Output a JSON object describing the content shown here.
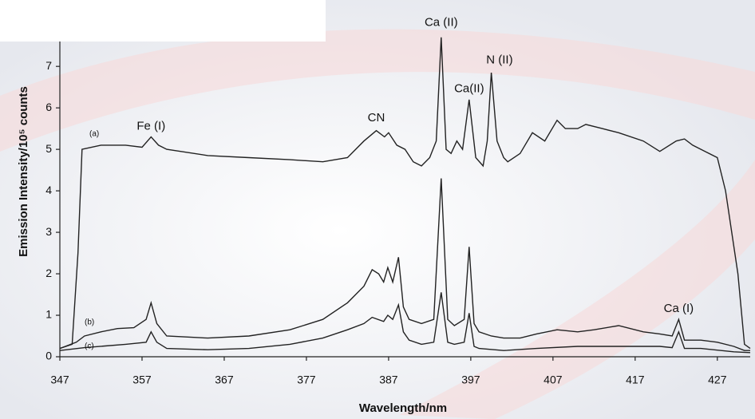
{
  "chart_data": {
    "type": "line",
    "xlabel": "Wavelength/nm",
    "ylabel": "Emission Intensity/10⁵ counts",
    "xlim": [
      347,
      431
    ],
    "ylim": [
      0,
      7.6
    ],
    "xticks": [
      347,
      357,
      367,
      377,
      387,
      397,
      407,
      417,
      427
    ],
    "yticks": [
      0,
      1,
      2,
      3,
      4,
      5,
      6,
      7
    ],
    "annotations": [
      {
        "text": "Fe (I)",
        "x": 358.1,
        "y": 5.55
      },
      {
        "text": "CN",
        "x": 385.5,
        "y": 5.75
      },
      {
        "text": "Ca (II)",
        "x": 393.4,
        "y": 8.05
      },
      {
        "text": "Ca(II)",
        "x": 396.8,
        "y": 6.45
      },
      {
        "text": "N (II)",
        "x": 400.5,
        "y": 7.15
      },
      {
        "text": "Ca (I)",
        "x": 422.3,
        "y": 1.15
      }
    ],
    "series": [
      {
        "name": "(a)",
        "color": "#222",
        "x": [
          347,
          348.5,
          349.2,
          349.7,
          352,
          355,
          357,
          358.1,
          359,
          360,
          365,
          370,
          375,
          379,
          382,
          384,
          385.5,
          386.5,
          387,
          388,
          389,
          390,
          391,
          392,
          392.8,
          393.4,
          394,
          394.6,
          395.3,
          396,
          396.8,
          397.6,
          398.5,
          399,
          399.5,
          400.2,
          401,
          401.5,
          403,
          404.5,
          406,
          407.5,
          408.5,
          410,
          411,
          413,
          415,
          418,
          420,
          422,
          423,
          424,
          425.5,
          427,
          428,
          429.5,
          430.3,
          431
        ],
        "values": [
          0.2,
          0.3,
          2.5,
          5.0,
          5.1,
          5.1,
          5.05,
          5.3,
          5.1,
          5.0,
          4.85,
          4.8,
          4.75,
          4.7,
          4.8,
          5.2,
          5.45,
          5.3,
          5.4,
          5.1,
          5.0,
          4.7,
          4.6,
          4.8,
          5.2,
          7.7,
          5.0,
          4.9,
          5.2,
          5.0,
          6.2,
          4.8,
          4.6,
          5.2,
          6.85,
          5.2,
          4.8,
          4.7,
          4.9,
          5.4,
          5.2,
          5.7,
          5.5,
          5.5,
          5.6,
          5.5,
          5.4,
          5.2,
          4.95,
          5.2,
          5.25,
          5.1,
          4.95,
          4.8,
          4.0,
          2.0,
          0.3,
          0.2
        ]
      },
      {
        "name": "(b)",
        "color": "#222",
        "x": [
          347,
          349,
          350,
          352,
          354,
          356,
          357.5,
          358.1,
          358.8,
          360,
          365,
          370,
          375,
          379,
          382,
          384,
          385,
          385.8,
          386.4,
          386.9,
          387.5,
          388.2,
          388.8,
          389.5,
          391,
          392.5,
          393.4,
          394.2,
          395,
          396.2,
          396.8,
          397.4,
          398,
          399.5,
          401,
          403,
          405,
          407.5,
          410,
          412,
          415,
          418,
          420,
          421.5,
          422.3,
          423,
          425,
          427,
          429,
          430.3,
          431
        ],
        "values": [
          0.2,
          0.35,
          0.5,
          0.6,
          0.68,
          0.7,
          0.9,
          1.3,
          0.8,
          0.5,
          0.45,
          0.5,
          0.65,
          0.9,
          1.3,
          1.7,
          2.1,
          2.0,
          1.8,
          2.15,
          1.8,
          2.4,
          1.2,
          0.9,
          0.8,
          0.9,
          4.3,
          0.9,
          0.75,
          0.9,
          2.65,
          0.8,
          0.6,
          0.5,
          0.45,
          0.45,
          0.55,
          0.65,
          0.6,
          0.65,
          0.75,
          0.6,
          0.55,
          0.5,
          0.9,
          0.4,
          0.4,
          0.35,
          0.25,
          0.15,
          0.15
        ]
      },
      {
        "name": "(c)",
        "color": "#222",
        "x": [
          347,
          350,
          355,
          357.5,
          358.1,
          358.8,
          360,
          365,
          370,
          375,
          379,
          382,
          384,
          385,
          386.4,
          386.9,
          387.5,
          388.2,
          388.8,
          389.5,
          391,
          392.5,
          393.4,
          394.2,
          395,
          396.2,
          396.8,
          397.4,
          398,
          401,
          405,
          410,
          415,
          420,
          421.5,
          422.3,
          423,
          425,
          429,
          431
        ],
        "values": [
          0.15,
          0.22,
          0.3,
          0.35,
          0.6,
          0.35,
          0.2,
          0.17,
          0.2,
          0.3,
          0.45,
          0.65,
          0.8,
          0.95,
          0.85,
          1.0,
          0.9,
          1.25,
          0.6,
          0.4,
          0.3,
          0.35,
          1.55,
          0.35,
          0.3,
          0.35,
          1.05,
          0.25,
          0.2,
          0.15,
          0.2,
          0.25,
          0.25,
          0.25,
          0.22,
          0.6,
          0.2,
          0.2,
          0.12,
          0.1
        ]
      }
    ]
  }
}
